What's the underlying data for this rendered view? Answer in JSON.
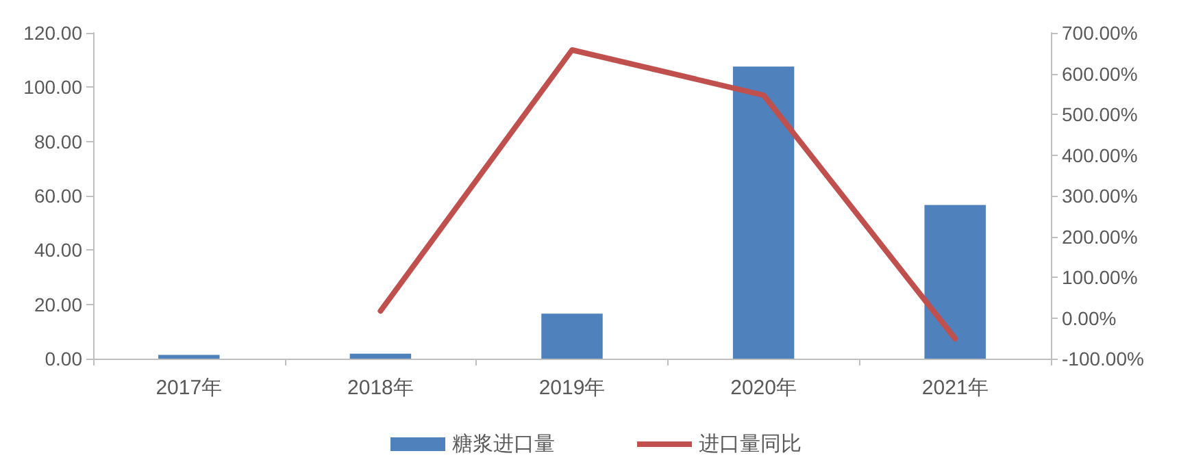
{
  "chart_data": {
    "type": "bar",
    "categories": [
      "2017年",
      "2018年",
      "2019年",
      "2020年",
      "2021年"
    ],
    "series": [
      {
        "name": "糖浆进口量",
        "color": "#4f81bd",
        "values": [
          1.4,
          1.8,
          16.6,
          107.6,
          56.6
        ]
      },
      {
        "name": "进口量同比",
        "type": "line",
        "axis": "y2",
        "color": "#c0504d",
        "values": [
          null,
          17,
          658,
          547,
          -51
        ]
      }
    ],
    "ylim": [
      0,
      120
    ],
    "yticks": [
      {
        "value": 0,
        "label": "0.00"
      },
      {
        "value": 20,
        "label": "20.00"
      },
      {
        "value": 40,
        "label": "40.00"
      },
      {
        "value": 60,
        "label": "60.00"
      },
      {
        "value": 80,
        "label": "80.00"
      },
      {
        "value": 100,
        "label": "100.00"
      },
      {
        "value": 120,
        "label": "120.00"
      }
    ],
    "y2lim": [
      -100,
      700
    ],
    "y2ticks": [
      {
        "value": -100,
        "label": "-100.00%"
      },
      {
        "value": 0,
        "label": "0.00%"
      },
      {
        "value": 100,
        "label": "100.00%"
      },
      {
        "value": 200,
        "label": "200.00%"
      },
      {
        "value": 300,
        "label": "300.00%"
      },
      {
        "value": 400,
        "label": "400.00%"
      },
      {
        "value": 500,
        "label": "500.00%"
      },
      {
        "value": 600,
        "label": "600.00%"
      },
      {
        "value": 700,
        "label": "700.00%"
      }
    ],
    "grid": false,
    "legend": "bottom",
    "marker": "none",
    "line_style": "solid"
  }
}
